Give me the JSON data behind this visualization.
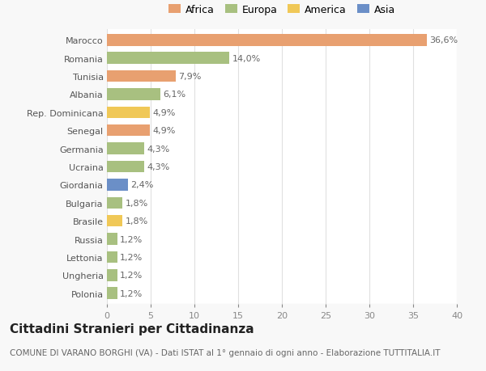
{
  "categories": [
    "Polonia",
    "Ungheria",
    "Lettonia",
    "Russia",
    "Brasile",
    "Bulgaria",
    "Giordania",
    "Ucraina",
    "Germania",
    "Senegal",
    "Rep. Dominicana",
    "Albania",
    "Tunisia",
    "Romania",
    "Marocco"
  ],
  "values": [
    1.2,
    1.2,
    1.2,
    1.2,
    1.8,
    1.8,
    2.4,
    4.3,
    4.3,
    4.9,
    4.9,
    6.1,
    7.9,
    14.0,
    36.6
  ],
  "labels": [
    "1,2%",
    "1,2%",
    "1,2%",
    "1,2%",
    "1,8%",
    "1,8%",
    "2,4%",
    "4,3%",
    "4,3%",
    "4,9%",
    "4,9%",
    "6,1%",
    "7,9%",
    "14,0%",
    "36,6%"
  ],
  "colors": [
    "#a8c080",
    "#a8c080",
    "#a8c080",
    "#a8c080",
    "#f0c857",
    "#a8c080",
    "#6b8fc7",
    "#a8c080",
    "#a8c080",
    "#e8a070",
    "#f0c857",
    "#a8c080",
    "#e8a070",
    "#a8c080",
    "#e8a070"
  ],
  "legend_labels": [
    "Africa",
    "Europa",
    "America",
    "Asia"
  ],
  "legend_colors": [
    "#e8a070",
    "#a8c080",
    "#f0c857",
    "#6b8fc7"
  ],
  "title": "Cittadini Stranieri per Cittadinanza",
  "subtitle": "COMUNE DI VARANO BORGHI (VA) - Dati ISTAT al 1° gennaio di ogni anno - Elaborazione TUTTITALIA.IT",
  "xlim": [
    0,
    40
  ],
  "xticks": [
    0,
    5,
    10,
    15,
    20,
    25,
    30,
    35,
    40
  ],
  "background_color": "#f8f8f8",
  "bar_background": "#ffffff",
  "grid_color": "#e0e0e0",
  "title_fontsize": 11,
  "subtitle_fontsize": 7.5,
  "label_fontsize": 8,
  "tick_fontsize": 8
}
